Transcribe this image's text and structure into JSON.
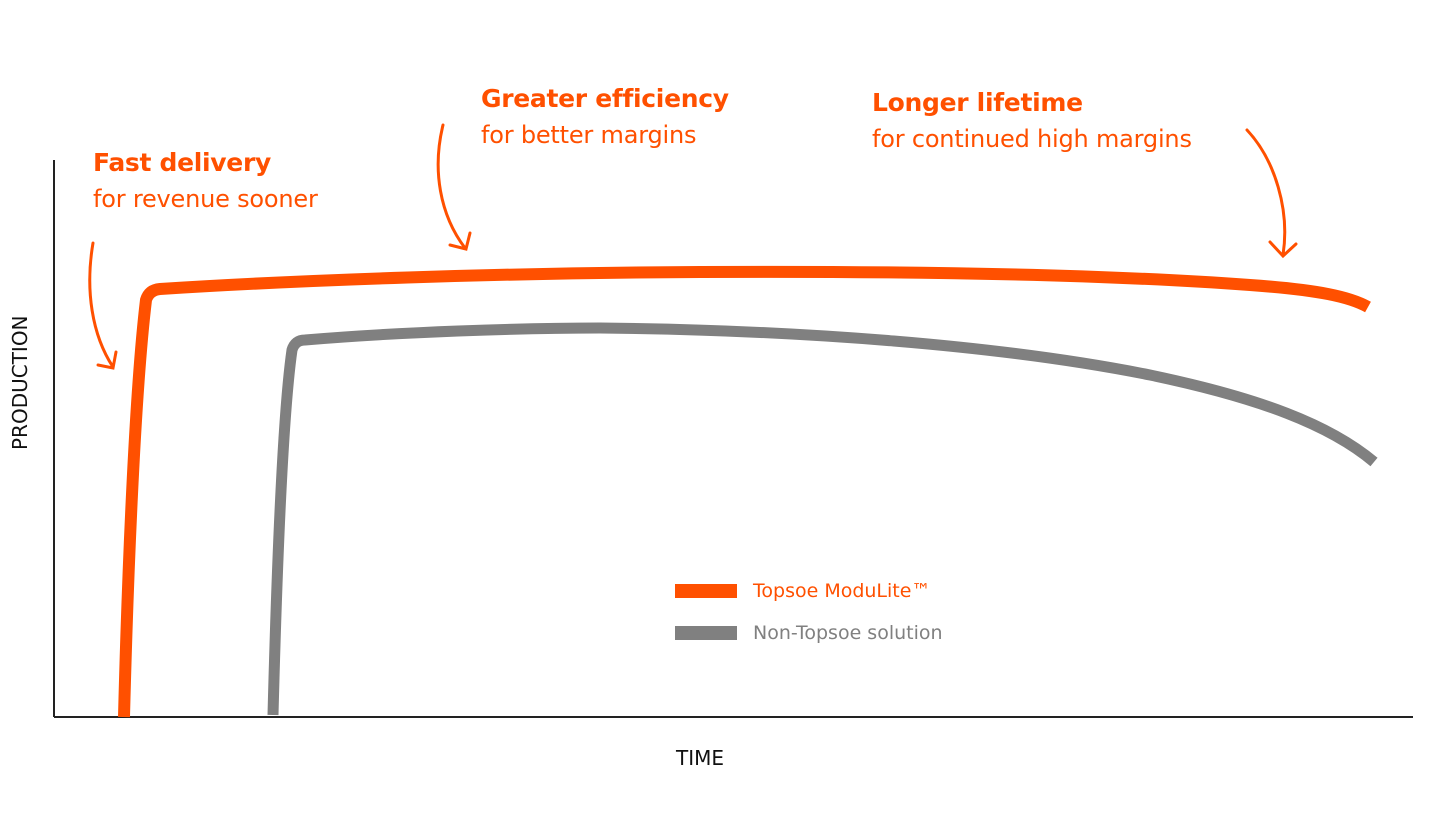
{
  "chart_data": {
    "type": "line",
    "xlabel": "TIME",
    "ylabel": "PRODUCTION",
    "grid": false,
    "legend_placement": "bottom-center",
    "series": [
      {
        "name": "Topsoe ModuLite™",
        "color": "#ff5000"
      },
      {
        "name": "Non-Topsoe solution",
        "color": "#808080"
      }
    ],
    "annotations": [
      {
        "title": "Fast delivery",
        "subtitle": "for revenue sooner"
      },
      {
        "title": "Greater efficiency",
        "subtitle": "for better margins"
      },
      {
        "title": "Longer lifetime",
        "subtitle": "for continued high margins"
      }
    ]
  },
  "colors": {
    "accent": "#ff5000",
    "secondary": "#808080",
    "axis": "#222222"
  }
}
